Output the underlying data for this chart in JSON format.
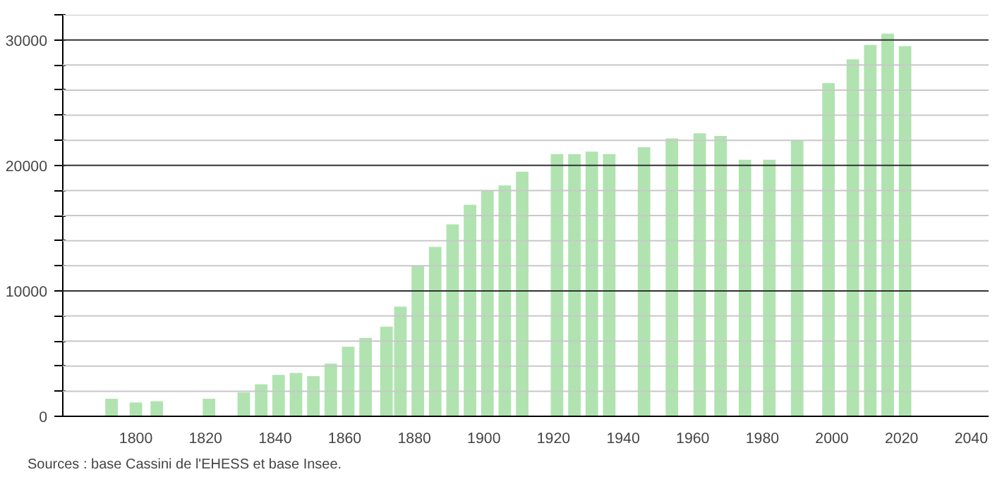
{
  "chart_data": {
    "type": "bar",
    "x": [
      1793,
      1800,
      1806,
      1821,
      1831,
      1836,
      1841,
      1846,
      1851,
      1856,
      1861,
      1866,
      1872,
      1876,
      1881,
      1886,
      1891,
      1896,
      1901,
      1906,
      1911,
      1921,
      1926,
      1931,
      1936,
      1946,
      1954,
      1962,
      1968,
      1975,
      1982,
      1990,
      1999,
      2006,
      2011,
      2016,
      2021
    ],
    "values": [
      1400,
      1100,
      1200,
      1400,
      1900,
      2550,
      3300,
      3450,
      3200,
      4200,
      5550,
      6250,
      7150,
      8750,
      12000,
      13500,
      15300,
      16850,
      18000,
      18400,
      19500,
      20900,
      20900,
      21100,
      20900,
      21450,
      22150,
      22550,
      22350,
      20450,
      20450,
      22000,
      26550,
      28450,
      29600,
      30500,
      29500
    ],
    "color": "#b0e3b0",
    "xlim": [
      1779,
      2045
    ],
    "xticks": [
      1800,
      1820,
      1840,
      1860,
      1880,
      1900,
      1920,
      1940,
      1960,
      1980,
      2000,
      2020,
      2040
    ],
    "ylim": [
      0,
      32000
    ],
    "yticks": [
      0,
      {
        "value": 2000,
        "label": null
      },
      {
        "value": 4000,
        "label": null
      },
      {
        "value": 6000,
        "label": null
      },
      {
        "value": 8000,
        "label": null
      },
      10000,
      {
        "value": 12000,
        "label": null
      },
      {
        "value": 14000,
        "label": null
      },
      {
        "value": 16000,
        "label": null
      },
      {
        "value": 18000,
        "label": null
      },
      20000,
      {
        "value": 22000,
        "label": null
      },
      {
        "value": 24000,
        "label": null
      },
      {
        "value": 26000,
        "label": null
      },
      {
        "value": 28000,
        "label": null
      },
      30000,
      {
        "value": 32000,
        "label": null
      }
    ],
    "grid": "y",
    "annotations": [
      "Sources : base Cassini de l'EHESS et base Insee."
    ]
  }
}
